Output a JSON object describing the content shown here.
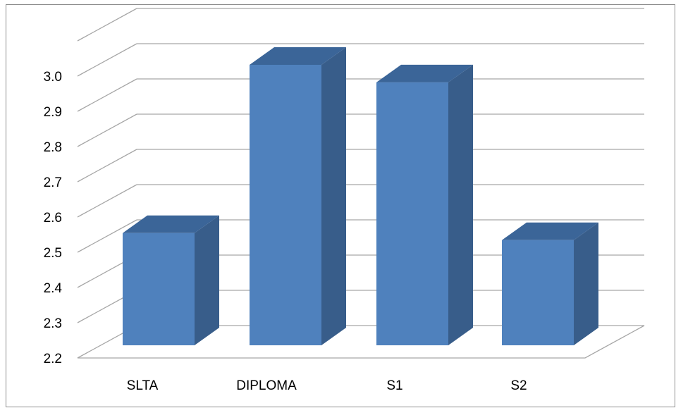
{
  "chart_data": {
    "type": "bar",
    "style": "3d-column",
    "categories": [
      "SLTA",
      "DIPLOMA",
      "S1",
      "S2"
    ],
    "series": [
      {
        "values": [
          2.52,
          3.0,
          2.95,
          2.5
        ]
      }
    ],
    "title": "",
    "xlabel": "",
    "ylabel": "",
    "ylim": [
      2.2,
      3.0
    ],
    "yticks": [
      "2.2",
      "2.3",
      "2.4",
      "2.5",
      "2.6",
      "2.7",
      "2.8",
      "2.9",
      "3.0"
    ],
    "grid": true,
    "legend": "none",
    "colors": {
      "bar_front": "#4f81bd",
      "bar_side": "#385d8a",
      "bar_top": "#3b6598",
      "gridline": "#a6a6a6",
      "axis_text": "#000000"
    }
  }
}
